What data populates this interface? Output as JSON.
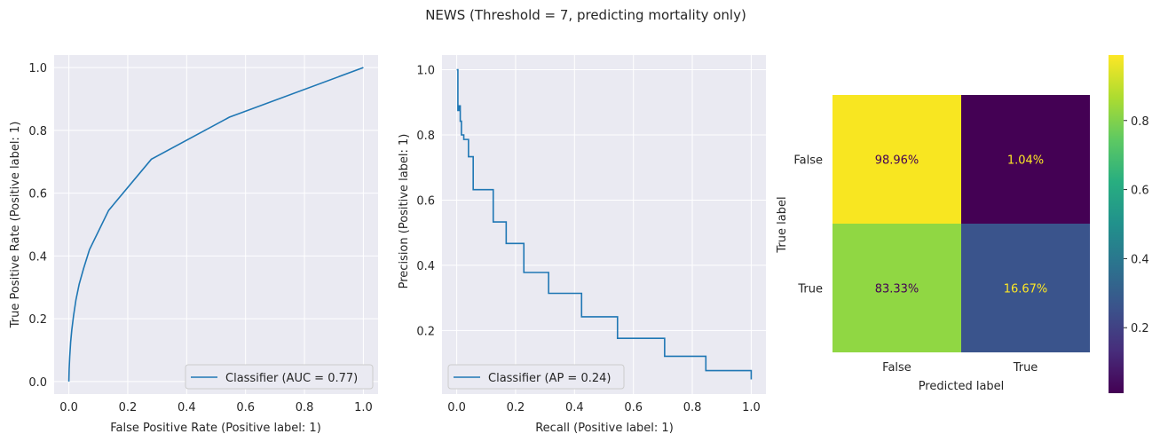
{
  "figure": {
    "title": "NEWS (Threshold = 7, predicting mortality only)",
    "axes_bg": "#eaeaf2",
    "line_color": "#1f77b4"
  },
  "chart_data": [
    {
      "type": "line",
      "name": "roc",
      "xlabel": "False Positive Rate (Positive label: 1)",
      "ylabel": "True Positive Rate (Positive label: 1)",
      "xlim": [
        -0.05,
        1.05
      ],
      "ylim": [
        -0.04,
        1.04
      ],
      "xticks": [
        "0.0",
        "0.2",
        "0.4",
        "0.6",
        "0.8",
        "1.0"
      ],
      "yticks": [
        "0.0",
        "0.2",
        "0.4",
        "0.6",
        "0.8",
        "1.0"
      ],
      "grid": true,
      "legend_position": "lower-right",
      "series": [
        {
          "name": "Classifier (AUC = 0.77)",
          "x": [
            0.0,
            0.001,
            0.003,
            0.006,
            0.01,
            0.016,
            0.024,
            0.035,
            0.05,
            0.07,
            0.135,
            0.28,
            0.545,
            1.0
          ],
          "y": [
            0.0,
            0.04,
            0.08,
            0.125,
            0.165,
            0.21,
            0.26,
            0.31,
            0.36,
            0.42,
            0.545,
            0.708,
            0.842,
            1.0
          ]
        }
      ]
    },
    {
      "type": "line",
      "name": "precision-recall",
      "xlabel": "Recall (Positive label: 1)",
      "ylabel": "Precision (Positive label: 1)",
      "xlim": [
        -0.05,
        1.05
      ],
      "ylim": [
        0.005,
        1.045
      ],
      "xticks": [
        "0.0",
        "0.2",
        "0.4",
        "0.6",
        "0.8",
        "1.0"
      ],
      "yticks": [
        "0.2",
        "0.4",
        "0.6",
        "0.8",
        "1.0"
      ],
      "grid": true,
      "legend_position": "lower-left",
      "series": [
        {
          "name": "Classifier (AP = 0.24)",
          "step": "post",
          "x": [
            0.0,
            0.004,
            0.008,
            0.012,
            0.016,
            0.024,
            0.04,
            0.056,
            0.088,
            0.124,
            0.168,
            0.228,
            0.312,
            0.424,
            0.546,
            0.706,
            0.846,
            1.0
          ],
          "y": [
            1.0,
            0.875,
            0.889,
            0.842,
            0.8,
            0.786,
            0.733,
            0.632,
            0.632,
            0.533,
            0.467,
            0.378,
            0.314,
            0.242,
            0.176,
            0.121,
            0.077,
            0.05
          ]
        }
      ]
    },
    {
      "type": "heatmap",
      "name": "confusion-matrix",
      "xlabel": "Predicted label",
      "ylabel": "True label",
      "x_categories": [
        "False",
        "True"
      ],
      "y_categories": [
        "False",
        "True"
      ],
      "values": [
        [
          0.9896,
          0.0104
        ],
        [
          0.8333,
          0.1667
        ]
      ],
      "cell_labels": [
        [
          "98.96%",
          "1.04%"
        ],
        [
          "83.33%",
          "16.67%"
        ]
      ],
      "cell_colors": [
        [
          "#f8e621",
          "#440154"
        ],
        [
          "#90d743",
          "#3a548c"
        ]
      ],
      "cell_text_colors": [
        [
          "#440154",
          "#fde725"
        ],
        [
          "#440154",
          "#fde725"
        ]
      ],
      "colormap": "viridis",
      "colorbar": {
        "range": [
          0.0104,
          0.9896
        ],
        "ticks": [
          0.2,
          0.4,
          0.6,
          0.8
        ],
        "tick_labels": [
          "0.2",
          "0.4",
          "0.6",
          "0.8"
        ]
      }
    }
  ]
}
